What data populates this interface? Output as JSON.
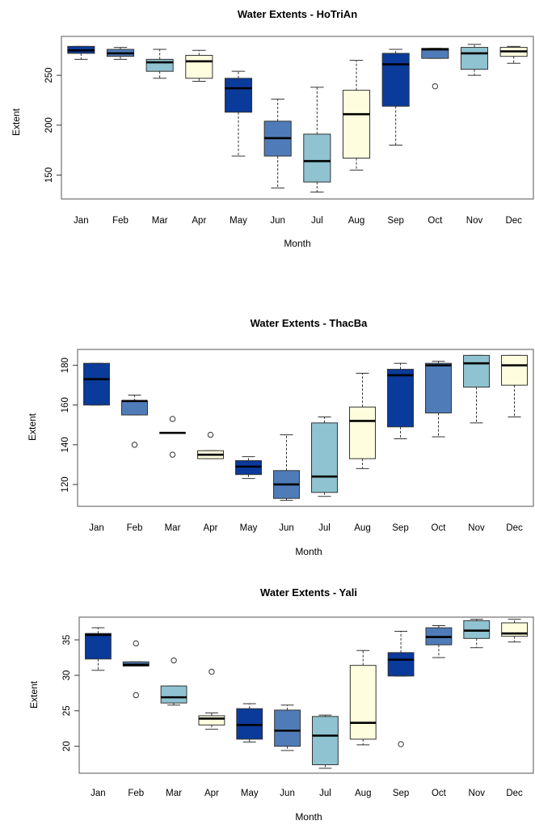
{
  "chart_data": [
    {
      "type": "box",
      "title": "Water Extents -  HoTriAn",
      "xlabel": "Month",
      "ylabel": "Extent",
      "categories": [
        "Jan",
        "Feb",
        "Mar",
        "Apr",
        "May",
        "Jun",
        "Jul",
        "Aug",
        "Sep",
        "Oct",
        "Nov",
        "Dec"
      ],
      "colors": [
        "#0a3a9a",
        "#4f7cb8",
        "#8fc3d1",
        "#fefedf",
        "#0a3a9a",
        "#4f7cb8",
        "#8fc3d1",
        "#fefedf",
        "#0a3a9a",
        "#4f7cb8",
        "#8fc3d1",
        "#fefedf"
      ],
      "yticks": [
        150,
        200,
        250
      ],
      "ylim": [
        126,
        289
      ],
      "boxes": [
        {
          "min": 266,
          "q1": 272,
          "median": 275,
          "q3": 279,
          "max": 279,
          "outliers": []
        },
        {
          "min": 266,
          "q1": 269,
          "median": 272,
          "q3": 276,
          "max": 278,
          "outliers": []
        },
        {
          "min": 247,
          "q1": 254,
          "median": 263,
          "q3": 266,
          "max": 276,
          "outliers": []
        },
        {
          "min": 244,
          "q1": 247,
          "median": 264,
          "q3": 270,
          "max": 275,
          "outliers": []
        },
        {
          "min": 169,
          "q1": 213,
          "median": 237,
          "q3": 247,
          "max": 254,
          "outliers": []
        },
        {
          "min": 137,
          "q1": 169,
          "median": 187,
          "q3": 204,
          "max": 226,
          "outliers": []
        },
        {
          "min": 133,
          "q1": 143,
          "median": 164,
          "q3": 191,
          "max": 238,
          "outliers": []
        },
        {
          "min": 155,
          "q1": 167,
          "median": 211,
          "q3": 235,
          "max": 265,
          "outliers": []
        },
        {
          "min": 180,
          "q1": 219,
          "median": 261,
          "q3": 272,
          "max": 276,
          "outliers": []
        },
        {
          "min": 267,
          "q1": 267,
          "median": 276,
          "q3": 277,
          "max": 277,
          "outliers": [
            239
          ]
        },
        {
          "min": 250,
          "q1": 256,
          "median": 272,
          "q3": 278,
          "max": 281,
          "outliers": []
        },
        {
          "min": 262,
          "q1": 269,
          "median": 274,
          "q3": 278,
          "max": 279,
          "outliers": []
        }
      ]
    },
    {
      "type": "box",
      "title": "Water Extents -  ThacBa",
      "xlabel": "Month",
      "ylabel": "Extent",
      "categories": [
        "Jan",
        "Feb",
        "Mar",
        "Apr",
        "May",
        "Jun",
        "Jul",
        "Aug",
        "Sep",
        "Oct",
        "Nov",
        "Dec"
      ],
      "colors": [
        "#0a3a9a",
        "#4f7cb8",
        "#8fc3d1",
        "#fefedf",
        "#0a3a9a",
        "#4f7cb8",
        "#8fc3d1",
        "#fefedf",
        "#0a3a9a",
        "#4f7cb8",
        "#8fc3d1",
        "#fefedf"
      ],
      "yticks": [
        120,
        140,
        160,
        180
      ],
      "ylim": [
        109,
        188
      ],
      "boxes": [
        {
          "min": 160,
          "q1": 160,
          "median": 173,
          "q3": 181,
          "max": 181,
          "outliers": []
        },
        {
          "min": 155,
          "q1": 155,
          "median": 162,
          "q3": 162,
          "max": 165,
          "outliers": [
            140
          ]
        },
        {
          "min": 146,
          "q1": 146,
          "median": 146,
          "q3": 146,
          "max": 146,
          "outliers": [
            153,
            135
          ]
        },
        {
          "min": 133,
          "q1": 133,
          "median": 135,
          "q3": 137,
          "max": 137,
          "outliers": [
            145
          ]
        },
        {
          "min": 123,
          "q1": 125,
          "median": 129,
          "q3": 132,
          "max": 134,
          "outliers": []
        },
        {
          "min": 112,
          "q1": 113,
          "median": 120,
          "q3": 127,
          "max": 145,
          "outliers": []
        },
        {
          "min": 114,
          "q1": 116,
          "median": 124,
          "q3": 151,
          "max": 154,
          "outliers": []
        },
        {
          "min": 128,
          "q1": 133,
          "median": 152,
          "q3": 159,
          "max": 176,
          "outliers": []
        },
        {
          "min": 143,
          "q1": 149,
          "median": 175,
          "q3": 178,
          "max": 181,
          "outliers": []
        },
        {
          "min": 144,
          "q1": 156,
          "median": 180,
          "q3": 181,
          "max": 182,
          "outliers": []
        },
        {
          "min": 151,
          "q1": 169,
          "median": 181,
          "q3": 185,
          "max": 185,
          "outliers": []
        },
        {
          "min": 154,
          "q1": 170,
          "median": 180,
          "q3": 185,
          "max": 185,
          "outliers": []
        }
      ]
    },
    {
      "type": "box",
      "title": "Water Extents -  Yali",
      "xlabel": "Month",
      "ylabel": "Extent",
      "categories": [
        "Jan",
        "Feb",
        "Mar",
        "Apr",
        "May",
        "Jun",
        "Jul",
        "Aug",
        "Sep",
        "Oct",
        "Nov",
        "Dec"
      ],
      "colors": [
        "#0a3a9a",
        "#4f7cb8",
        "#8fc3d1",
        "#fefedf",
        "#0a3a9a",
        "#4f7cb8",
        "#8fc3d1",
        "#fefedf",
        "#0a3a9a",
        "#4f7cb8",
        "#8fc3d1",
        "#fefedf"
      ],
      "yticks": [
        20,
        25,
        30,
        35
      ],
      "ylim": [
        16.2,
        38.2
      ],
      "boxes": [
        {
          "min": 30.7,
          "q1": 32.3,
          "median": 35.7,
          "q3": 35.9,
          "max": 36.7,
          "outliers": []
        },
        {
          "min": 31.3,
          "q1": 31.3,
          "median": 31.5,
          "q3": 31.9,
          "max": 31.9,
          "outliers": [
            34.5,
            27.2
          ]
        },
        {
          "min": 25.8,
          "q1": 26.1,
          "median": 26.9,
          "q3": 28.5,
          "max": 28.5,
          "outliers": [
            32.1
          ]
        },
        {
          "min": 22.4,
          "q1": 23.0,
          "median": 23.9,
          "q3": 24.3,
          "max": 24.7,
          "outliers": [
            30.5
          ]
        },
        {
          "min": 20.6,
          "q1": 21.0,
          "median": 23.0,
          "q3": 25.3,
          "max": 26.0,
          "outliers": []
        },
        {
          "min": 19.4,
          "q1": 20.0,
          "median": 22.2,
          "q3": 25.1,
          "max": 25.8,
          "outliers": []
        },
        {
          "min": 16.9,
          "q1": 17.4,
          "median": 21.5,
          "q3": 24.2,
          "max": 24.4,
          "outliers": []
        },
        {
          "min": 20.2,
          "q1": 21.0,
          "median": 23.3,
          "q3": 31.4,
          "max": 33.5,
          "outliers": []
        },
        {
          "min": 29.9,
          "q1": 29.9,
          "median": 32.2,
          "q3": 33.2,
          "max": 36.2,
          "outliers": [
            20.3
          ]
        },
        {
          "min": 32.5,
          "q1": 34.3,
          "median": 35.4,
          "q3": 36.7,
          "max": 37.0,
          "outliers": []
        },
        {
          "min": 33.9,
          "q1": 35.2,
          "median": 36.3,
          "q3": 37.7,
          "max": 37.9,
          "outliers": []
        },
        {
          "min": 34.7,
          "q1": 35.5,
          "median": 35.9,
          "q3": 37.4,
          "max": 37.9,
          "outliers": []
        }
      ]
    }
  ]
}
